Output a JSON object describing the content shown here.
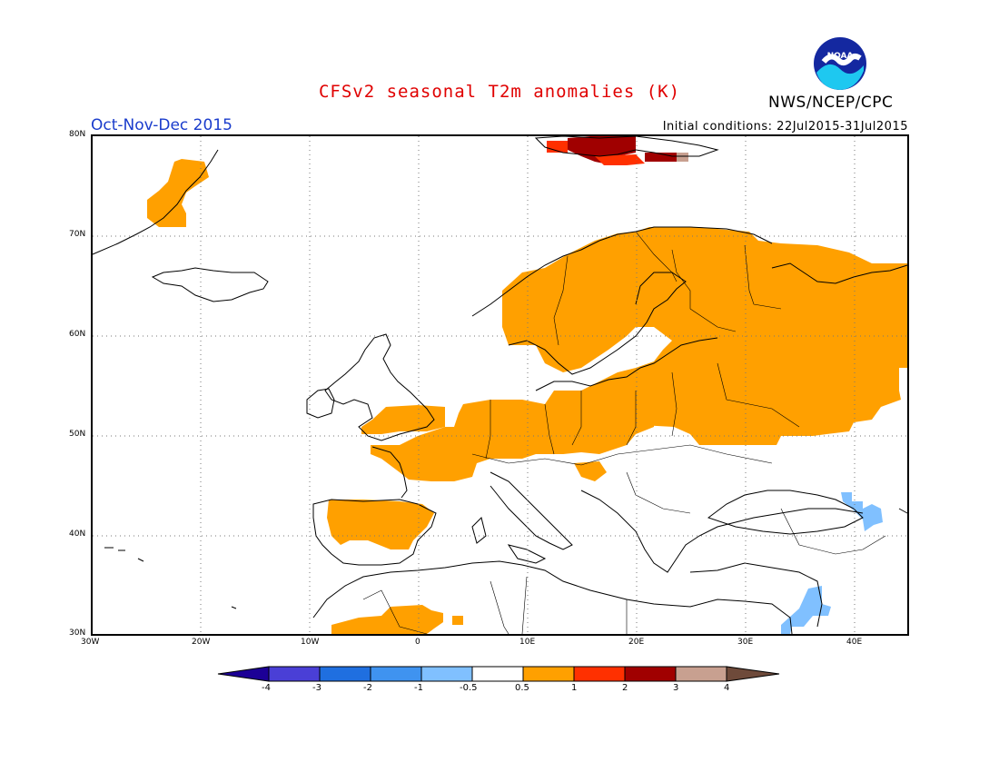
{
  "header": {
    "title": "CFSv2 seasonal T2m anomalies (K)",
    "agency": "NWS/NCEP/CPC",
    "period": "Oct-Nov-Dec 2015",
    "initial_conditions": "Initial conditions: 22Jul2015-31Jul2015"
  },
  "logo": {
    "text": "NOAA"
  },
  "map": {
    "lon_range": [
      -30,
      45
    ],
    "lat_range": [
      30,
      80
    ],
    "lon_ticks": [
      "30W",
      "20W",
      "10W",
      "0",
      "10E",
      "20E",
      "30E",
      "40E"
    ],
    "lat_ticks": [
      "30N",
      "40N",
      "50N",
      "60N",
      "70N",
      "80N"
    ],
    "grid": "dotted",
    "colors": {
      "warm_0_5_1": "#ffa000",
      "warm_2_3": "#a00000",
      "warm_1_2": "#ff3000",
      "cool_-0_5_-1": "#80c0ff",
      "warm_3_4": "#c8a090"
    },
    "regions": [
      {
        "name": "Scandinavia-Russia",
        "anomaly": "0.5 to 1"
      },
      {
        "name": "Central Europe",
        "anomaly": "0.5 to 1"
      },
      {
        "name": "France-UK south",
        "anomaly": "0.5 to 1"
      },
      {
        "name": "Iberia",
        "anomaly": "0.5 to 1"
      },
      {
        "name": "North Africa",
        "anomaly": "0.5 to 1"
      },
      {
        "name": "Greenland east",
        "anomaly": "0.5 to 1"
      },
      {
        "name": "Svalbard",
        "anomaly": "2 to 3"
      },
      {
        "name": "Caucasus",
        "anomaly": "-0.5 to -1"
      },
      {
        "name": "Levant",
        "anomaly": "-0.5 to -1"
      }
    ]
  },
  "colorbar": {
    "labels": [
      "-4",
      "-3",
      "-2",
      "-1",
      "-0.5",
      "0.5",
      "1",
      "2",
      "3",
      "4"
    ],
    "colors": [
      "#1c0096",
      "#4a3fd6",
      "#1f6fe0",
      "#3f93f0",
      "#80c0ff",
      "#ffffff",
      "#ffa000",
      "#ff3000",
      "#a00000",
      "#c8a090",
      "#6e4a3a"
    ]
  }
}
